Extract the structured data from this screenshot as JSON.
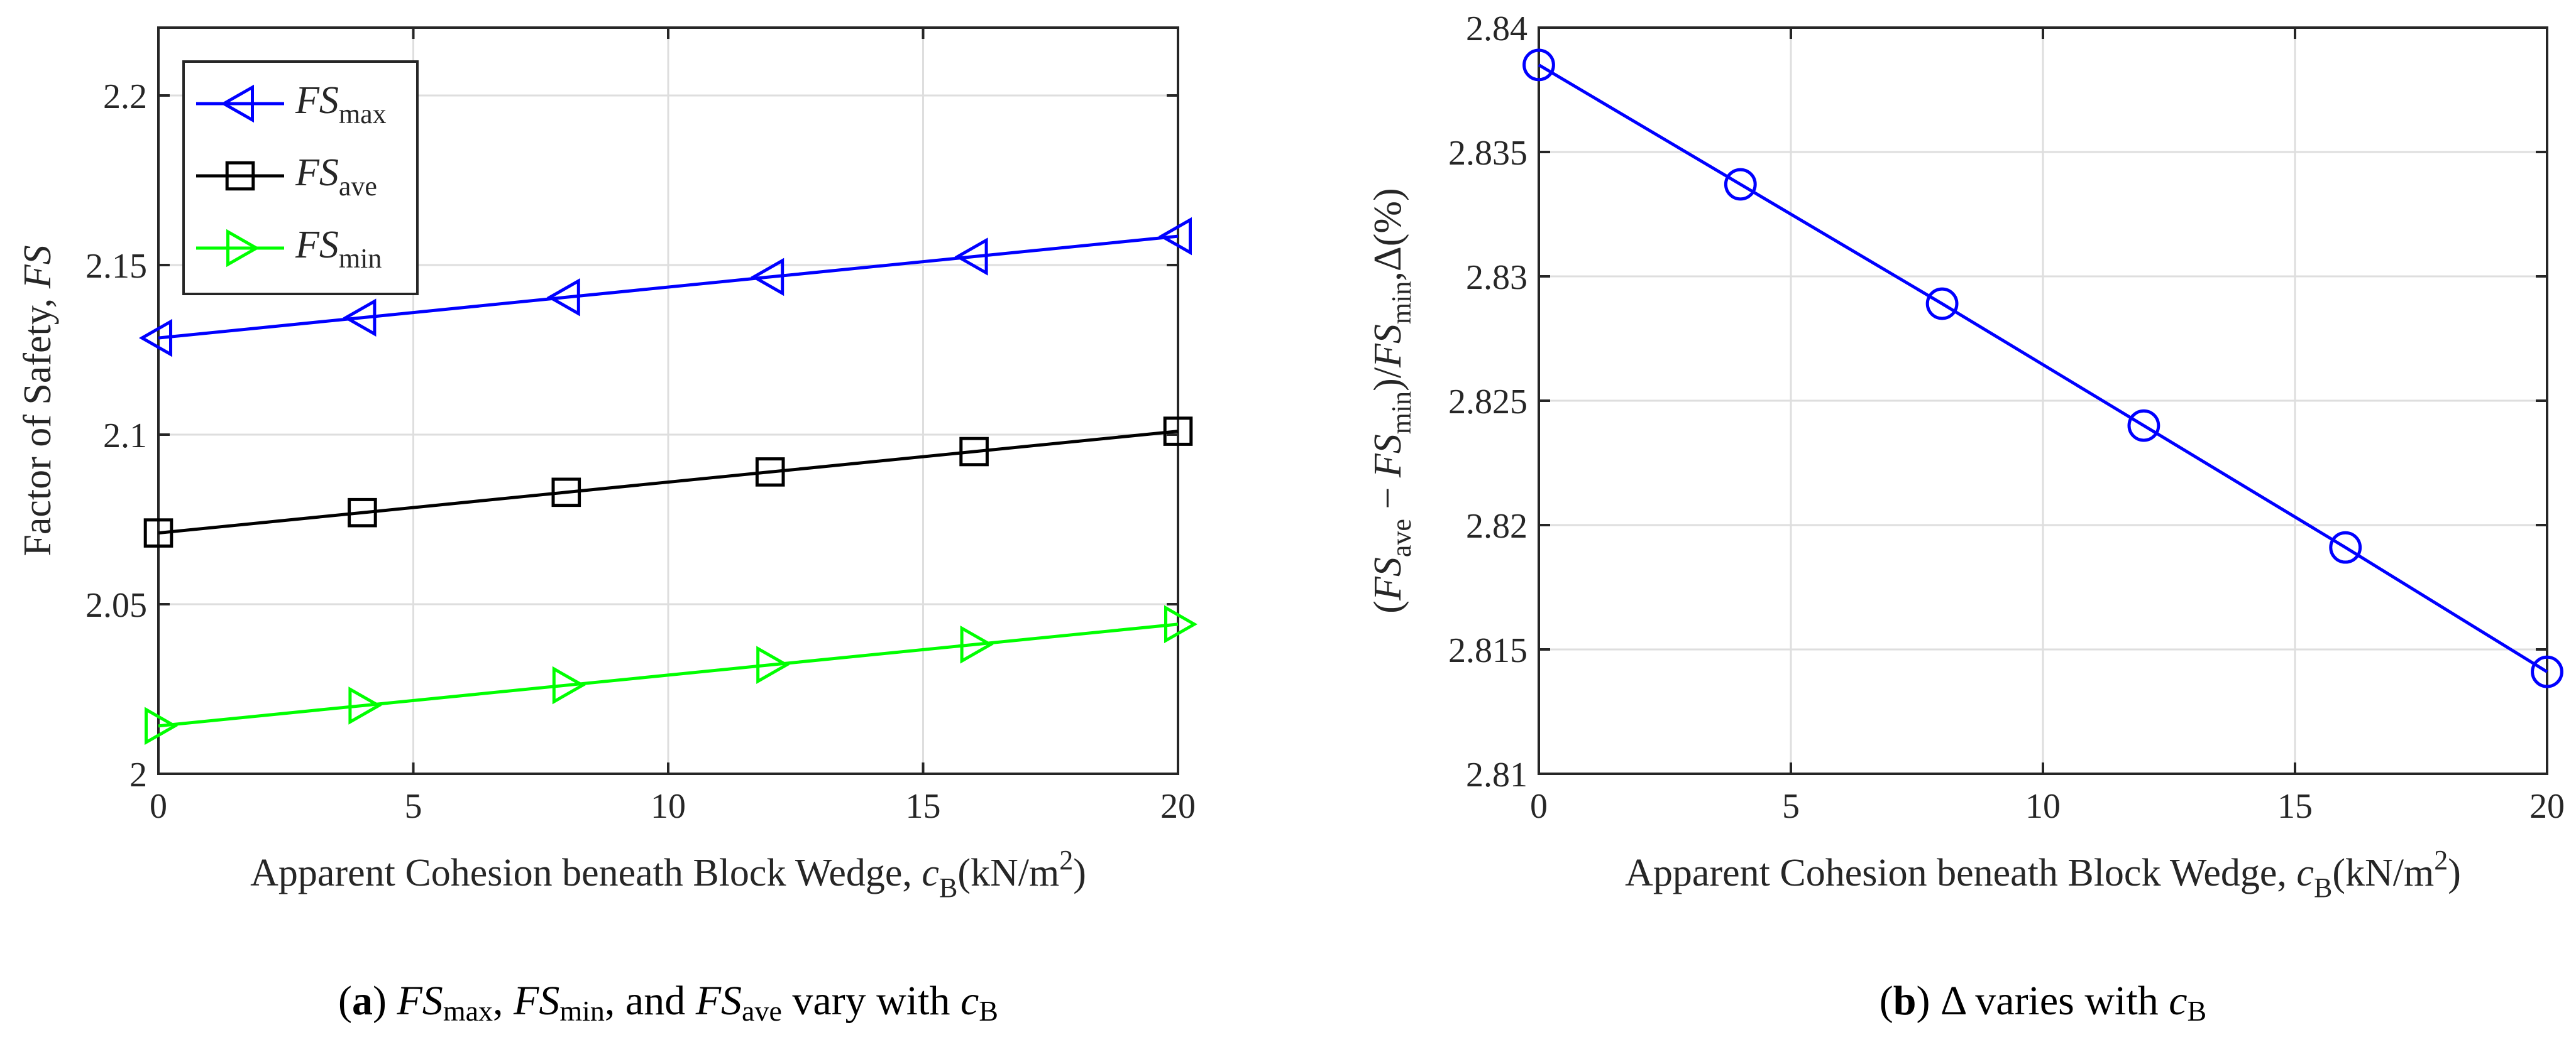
{
  "chart_data": [
    {
      "type": "line",
      "xlabel": {
        "main": "Apparent Cohesion beneath Block Wedge, ",
        "var": "c",
        "sub": "B",
        "unit": "(kN/m",
        "sup": "2",
        "close": ")"
      },
      "ylabel": {
        "main": "Factor of Safety, ",
        "var": "FS"
      },
      "xlim": [
        0,
        20
      ],
      "ylim": [
        2,
        2.22
      ],
      "xticks": [
        0,
        5,
        10,
        15,
        20
      ],
      "xtick_labels": [
        "0",
        "5",
        "10",
        "15",
        "20"
      ],
      "yticks": [
        2,
        2.05,
        2.1,
        2.15,
        2.2
      ],
      "ytick_labels": [
        "2",
        "2.05",
        "2.1",
        "2.15",
        "2.2"
      ],
      "grid": true,
      "legend_position": "top-left",
      "x": [
        0,
        4,
        8,
        12,
        16,
        20
      ],
      "series": [
        {
          "name": "FS",
          "sub": "max",
          "color": "#0000ff",
          "marker": "triangle-left",
          "values": [
            2.1285,
            2.1345,
            2.1405,
            2.1465,
            2.1525,
            2.1585
          ]
        },
        {
          "name": "FS",
          "sub": "ave",
          "color": "#000000",
          "marker": "square",
          "values": [
            2.071,
            2.077,
            2.083,
            2.089,
            2.095,
            2.101
          ]
        },
        {
          "name": "FS",
          "sub": "min",
          "color": "#00ff00",
          "marker": "triangle-right",
          "values": [
            2.0141,
            2.0201,
            2.0261,
            2.0321,
            2.0381,
            2.0441
          ]
        }
      ],
      "caption": {
        "letter": "a",
        "p1": "FS",
        "s1": "max",
        "c1": ", ",
        "p2": "FS",
        "s2": "min",
        "c2": ", and ",
        "p3": "FS",
        "s3": "ave",
        "c3": " vary with ",
        "var": "c",
        "sub": "B"
      }
    },
    {
      "type": "line",
      "xlabel": {
        "main": "Apparent Cohesion beneath Block Wedge, ",
        "var": "c",
        "sub": "B",
        "unit": "(kN/m",
        "sup": "2",
        "close": ")"
      },
      "ylabel": {
        "open": "(",
        "fs1": "FS",
        "s1": "ave",
        "minus": " − ",
        "fs2": "FS",
        "s2": "min",
        "slash": ")/",
        "fs3": "FS",
        "s3": "min",
        "tail": ",Δ(%)"
      },
      "xlim": [
        0,
        20
      ],
      "ylim": [
        2.81,
        2.84
      ],
      "xticks": [
        0,
        5,
        10,
        15,
        20
      ],
      "xtick_labels": [
        "0",
        "5",
        "10",
        "15",
        "20"
      ],
      "yticks": [
        2.81,
        2.815,
        2.82,
        2.825,
        2.83,
        2.835,
        2.84
      ],
      "ytick_labels": [
        "2.81",
        "2.815",
        "2.82",
        "2.825",
        "2.83",
        "2.835",
        "2.84"
      ],
      "grid": true,
      "x": [
        0,
        4,
        8,
        12,
        16,
        20
      ],
      "series": [
        {
          "name": "Δ",
          "color": "#0000ff",
          "marker": "circle",
          "values": [
            2.8385,
            2.8337,
            2.8289,
            2.824,
            2.8191,
            2.8141
          ]
        }
      ],
      "caption": {
        "letter": "b",
        "text": ") Δ varies with ",
        "var": "c",
        "sub": "B"
      }
    }
  ]
}
